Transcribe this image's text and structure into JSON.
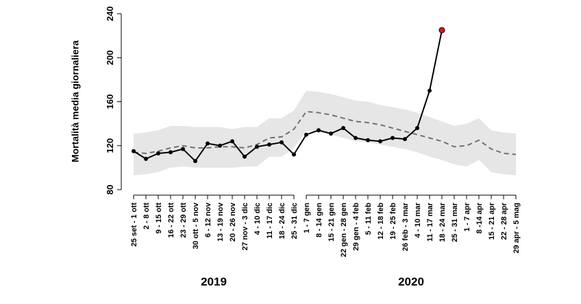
{
  "chart_data": {
    "type": "line",
    "y_label": "Mortalità media giornaliera",
    "ylim": [
      80,
      240
    ],
    "yticks": [
      80,
      120,
      160,
      200,
      240
    ],
    "groups": [
      {
        "name": "2019",
        "categories": [
          "25 set - 1 ott",
          "2 - 8 ott",
          "9 - 15 ott",
          "16 - 22 ott",
          "23 - 29 ott",
          "30 ott - 5 nov",
          "6 - 12 nov",
          "13 - 19 nov",
          "20 - 26 nov",
          "27 nov - 3 dic",
          "4 - 10 dic",
          "11 - 17 dic",
          "18 - 24 dic",
          "25 - 31 dic"
        ]
      },
      {
        "name": "2020",
        "categories": [
          "1 - 7 gen",
          "8 - 14 gen",
          "15 - 21 gen",
          "22 gen - 28 gen",
          "29 gen - 4 feb",
          "5 - 11 feb",
          "12 - 18 feb",
          "19 - 25 feb",
          "26 feb - 3 mar",
          "4 - 10 mar",
          "11 - 17 mar",
          "18 - 24 mar",
          "25 - 31 mar",
          "1 - 7 apr",
          "8 -14 apr",
          "15 - 21 apr",
          "22 - 28 apr",
          "29 apr - 5 mag"
        ]
      }
    ],
    "band": {
      "color": "#e6e6e6",
      "upper": [
        131,
        132,
        134,
        138,
        138,
        137,
        137,
        137,
        135,
        137,
        137,
        145,
        145,
        152,
        170,
        169,
        167,
        164,
        161,
        160,
        157,
        155,
        153,
        150,
        146,
        142,
        138,
        140,
        145,
        134,
        132,
        131
      ],
      "lower": [
        93,
        94,
        96,
        100,
        101,
        100,
        100,
        100,
        100,
        101,
        101,
        110,
        110,
        118,
        133,
        132,
        130,
        127,
        124,
        123,
        121,
        119,
        117,
        114,
        110,
        107,
        103,
        101,
        107,
        96,
        94,
        93
      ]
    },
    "series": [
      {
        "color": "#707070",
        "dashed": true,
        "values": [
          114,
          113,
          115,
          118,
          120,
          118,
          118,
          119,
          119,
          118,
          121,
          127,
          128,
          135,
          151,
          150,
          148,
          145,
          142,
          141,
          139,
          136,
          133,
          130,
          127,
          124,
          119,
          120,
          125,
          117,
          113,
          112
        ]
      },
      {
        "color": "#000000",
        "markers": true,
        "last_marker_color": "#e0141e",
        "values": [
          115,
          108,
          113,
          114,
          117,
          106,
          122,
          120,
          124,
          110,
          119,
          121,
          123,
          112,
          130,
          134,
          131,
          136,
          127,
          125,
          124,
          127,
          126,
          136,
          170,
          225,
          null,
          null,
          null,
          null,
          null,
          null
        ]
      }
    ]
  }
}
